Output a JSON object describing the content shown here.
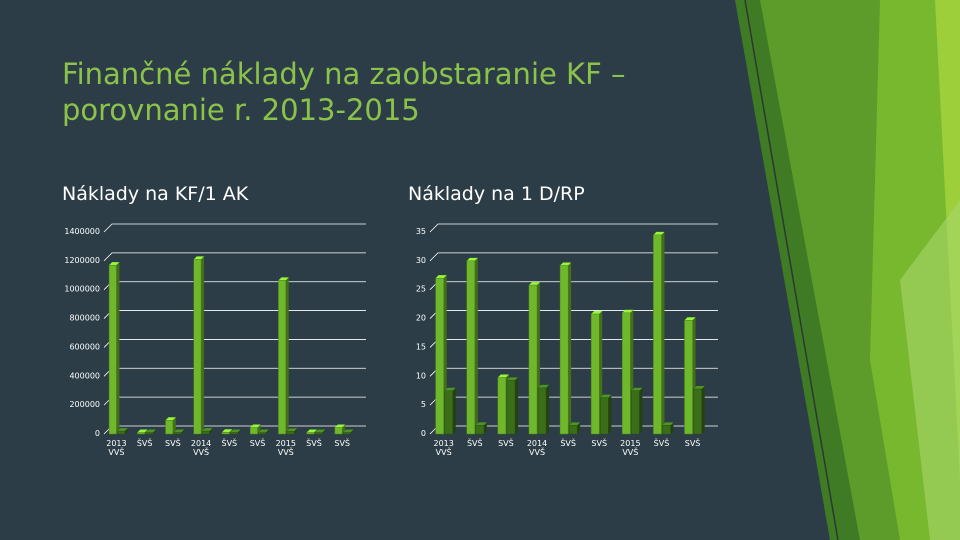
{
  "slide": {
    "title_line1": "Finančné náklady na zaobstaranie KF –",
    "title_line2": "porovnanie r. 2013-2015",
    "left_heading": "Náklady na KF/1 AK",
    "right_heading": "Náklady na 1 D/RP"
  },
  "colors": {
    "background": "#2c3d47",
    "title": "#8bc34a",
    "bar_front": "#6fb82b",
    "bar_back": "#3a6e19",
    "gridline": "#ffffff",
    "decor": [
      "#5d9c2b",
      "#78b82e",
      "#9ccf3a",
      "#3f7a24"
    ]
  },
  "chart_data": [
    {
      "type": "bar",
      "style": "3d-clustered",
      "categories": [
        [
          "2013",
          "VVŠ"
        ],
        [
          "ŠVŠ"
        ],
        [
          "SVŠ"
        ],
        [
          "2014",
          "VVŠ"
        ],
        [
          "ŠVŠ"
        ],
        [
          "SVŠ"
        ],
        [
          "2015",
          "VVŠ"
        ],
        [
          "ŠVŠ"
        ],
        [
          "SVŠ"
        ]
      ],
      "series": [
        {
          "values": [
            1170000,
            5000,
            95000,
            1210000,
            12000,
            45000,
            1065000,
            8000,
            45000
          ]
        },
        {
          "values": [
            20000,
            3000,
            8000,
            20000,
            5000,
            5000,
            18000,
            4000,
            5000
          ]
        }
      ],
      "ylim": [
        0,
        1400000
      ],
      "yticks": [
        0,
        200000,
        400000,
        600000,
        800000,
        1000000,
        1200000,
        1400000
      ],
      "grid": true
    },
    {
      "type": "bar",
      "style": "3d-clustered",
      "categories": [
        [
          "2013",
          "VVŠ"
        ],
        [
          "ŠVŠ"
        ],
        [
          "SVŠ"
        ],
        [
          "2014",
          "VVŠ"
        ],
        [
          "ŠVŠ"
        ],
        [
          "SVŠ"
        ],
        [
          "2015",
          "VVŠ"
        ],
        [
          "ŠVŠ"
        ],
        [
          "SVŠ"
        ]
      ],
      "series": [
        {
          "values": [
            27,
            30,
            9.8,
            25.8,
            29.2,
            20.8,
            21,
            34.5,
            19.7
          ]
        },
        {
          "values": [
            7.5,
            1.5,
            9.3,
            8,
            1.5,
            6.3,
            7.5,
            1.5,
            7.8
          ]
        }
      ],
      "ylim": [
        0,
        35
      ],
      "yticks": [
        0,
        5,
        10,
        15,
        20,
        25,
        30,
        35
      ],
      "grid": true
    }
  ]
}
